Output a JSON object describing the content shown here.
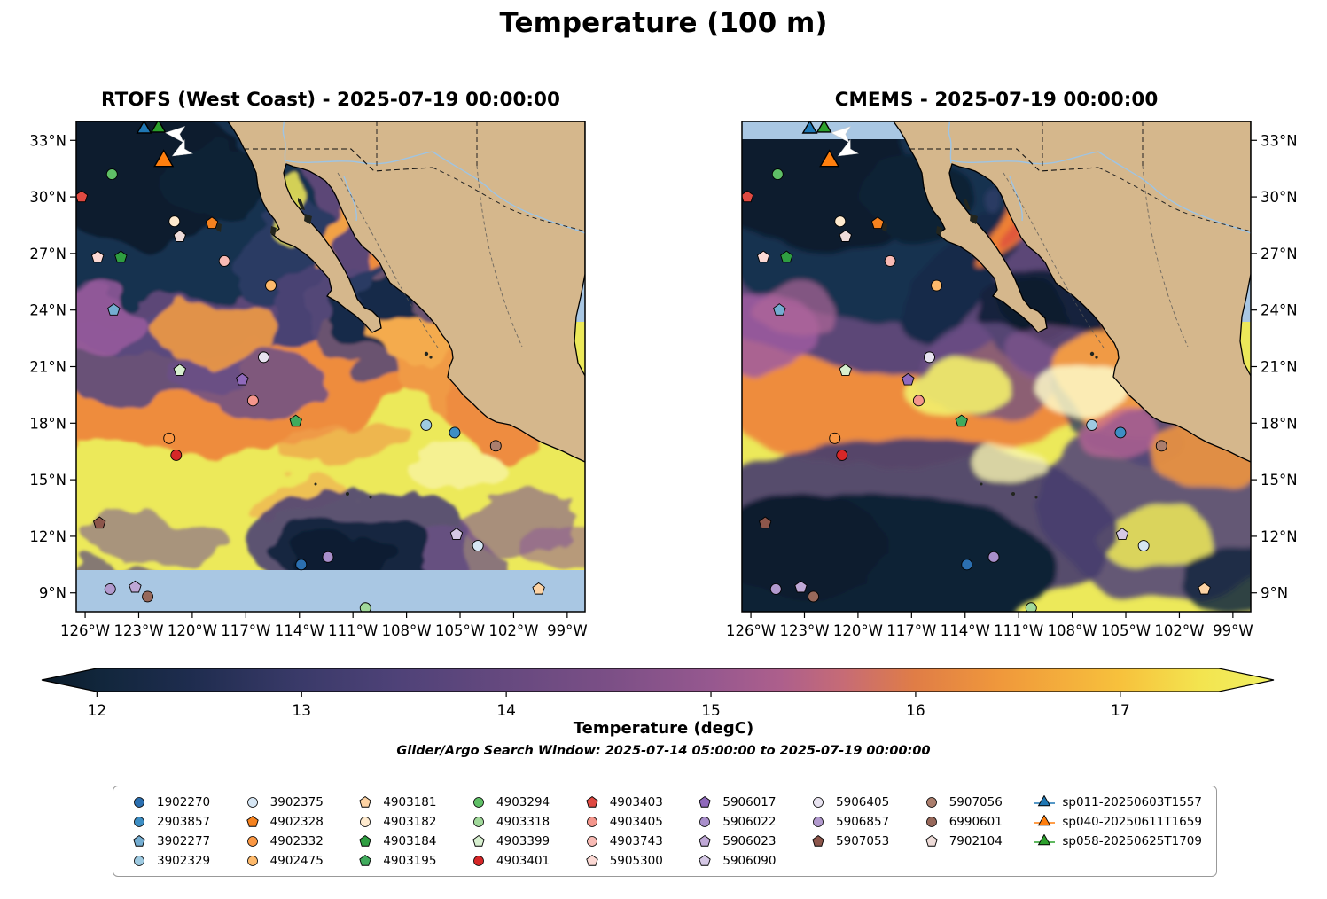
{
  "title": "Temperature (100 m)",
  "subplots": [
    {
      "title": "RTOFS (West Coast) - 2025-07-19 00:00:00"
    },
    {
      "title": "CMEMS - 2025-07-19 00:00:00"
    }
  ],
  "colorbar": {
    "label": "Temperature (degC)",
    "ticks": [
      12,
      13,
      14,
      15,
      16,
      17
    ],
    "vmin": 11.73,
    "vmax": 17.75,
    "stops": [
      [
        0,
        "#0a1a28"
      ],
      [
        4.5,
        "#11263b"
      ],
      [
        12,
        "#1e2c4e"
      ],
      [
        21,
        "#3a3a69"
      ],
      [
        29,
        "#4f4278"
      ],
      [
        37.7,
        "#66497f"
      ],
      [
        46,
        "#7b4f86"
      ],
      [
        54.3,
        "#96588f"
      ],
      [
        60,
        "#ad5f8c"
      ],
      [
        65,
        "#c66b76"
      ],
      [
        70.9,
        "#e07d46"
      ],
      [
        78,
        "#f0993b"
      ],
      [
        87.5,
        "#f7c13c"
      ],
      [
        94,
        "#f3e44f"
      ],
      [
        100,
        "#f0f063"
      ]
    ]
  },
  "search_window": "Glider/Argo Search Window: 2025-07-14 05:00:00 to 2025-07-19 00:00:00",
  "legend": {
    "columns": [
      [
        "1902270",
        "2903857",
        "3902277",
        "3902329"
      ],
      [
        "3902375",
        "4902328",
        "4902332",
        "4902475"
      ],
      [
        "4903181",
        "4903182",
        "4903184",
        "4903195"
      ],
      [
        "4903294",
        "4903318",
        "4903399",
        "4903401"
      ],
      [
        "4903403",
        "4903405",
        "4903743",
        "5905300"
      ],
      [
        "5906017",
        "5906022",
        "5906023",
        "5906090"
      ],
      [
        "5906405",
        "5906857",
        "5907053"
      ],
      [
        "5907056",
        "6990601",
        "7902104"
      ],
      [
        "sp011-20250603T1557",
        "sp040-20250611T1659",
        "sp058-20250625T1709"
      ]
    ]
  },
  "chart_data": {
    "type": "heatmap",
    "variable": "Temperature (100 m)",
    "units": "degC",
    "valid_time": "2025-07-19 00:00:00",
    "panels": [
      "RTOFS (West Coast)",
      "CMEMS"
    ],
    "extent": {
      "lon_min": -126.5,
      "lon_max": -98.0,
      "lat_min": 8.0,
      "lat_max": 34.0
    },
    "lat_ticks": [
      {
        "value": 33,
        "label": "33°N"
      },
      {
        "value": 30,
        "label": "30°N"
      },
      {
        "value": 27,
        "label": "27°N"
      },
      {
        "value": 24,
        "label": "24°N"
      },
      {
        "value": 21,
        "label": "21°N"
      },
      {
        "value": 18,
        "label": "18°N"
      },
      {
        "value": 15,
        "label": "15°N"
      },
      {
        "value": 12,
        "label": "12°N"
      },
      {
        "value": 9,
        "label": "9°N"
      }
    ],
    "lon_ticks": [
      {
        "value": -126,
        "label": "126°W"
      },
      {
        "value": -123,
        "label": "123°W"
      },
      {
        "value": -120,
        "label": "120°W"
      },
      {
        "value": -117,
        "label": "117°W"
      },
      {
        "value": -114,
        "label": "114°W"
      },
      {
        "value": -111,
        "label": "111°W"
      },
      {
        "value": -108,
        "label": "108°W"
      },
      {
        "value": -105,
        "label": "105°W"
      },
      {
        "value": -102,
        "label": "102°W"
      },
      {
        "value": -99,
        "label": "99°W"
      }
    ],
    "floats": [
      {
        "id": "1902270",
        "shape": "circle",
        "color": "#2b6fb0",
        "lon": -113.9,
        "lat": 10.5
      },
      {
        "id": "2903857",
        "shape": "circle",
        "color": "#3d8ec4",
        "lon": -105.3,
        "lat": 17.5
      },
      {
        "id": "3902277",
        "shape": "pentagon",
        "color": "#74add1",
        "lon": -124.4,
        "lat": 24.0
      },
      {
        "id": "3902329",
        "shape": "circle",
        "color": "#9ecae1",
        "lon": -106.9,
        "lat": 17.9
      },
      {
        "id": "3902375",
        "shape": "circle",
        "color": "#d6e6f4",
        "lon": -104.0,
        "lat": 11.5
      },
      {
        "id": "4902328",
        "shape": "pentagon",
        "color": "#f5821f",
        "lon": -118.9,
        "lat": 28.6
      },
      {
        "id": "4902332",
        "shape": "circle",
        "color": "#fa9743",
        "lon": -121.3,
        "lat": 17.2
      },
      {
        "id": "4902475",
        "shape": "circle",
        "color": "#fdb96b",
        "lon": -115.6,
        "lat": 25.3
      },
      {
        "id": "4903181",
        "shape": "pentagon",
        "color": "#fdd3a4",
        "lon": -100.6,
        "lat": 9.2
      },
      {
        "id": "4903182",
        "shape": "circle",
        "color": "#feeace",
        "lon": -121.0,
        "lat": 28.7
      },
      {
        "id": "4903184",
        "shape": "pentagon",
        "color": "#2f9e41",
        "lon": -124.0,
        "lat": 26.8
      },
      {
        "id": "4903195",
        "shape": "pentagon",
        "color": "#41ab5d",
        "lon": -114.2,
        "lat": 18.1
      },
      {
        "id": "4903294",
        "shape": "circle",
        "color": "#5fbf66",
        "lon": -124.5,
        "lat": 31.2
      },
      {
        "id": "4903318",
        "shape": "circle",
        "color": "#a1d99b",
        "lon": -110.3,
        "lat": 8.2
      },
      {
        "id": "4903399",
        "shape": "pentagon",
        "color": "#d7efcf",
        "lon": -120.7,
        "lat": 20.8
      },
      {
        "id": "4903401",
        "shape": "circle",
        "color": "#d62728",
        "lon": -120.9,
        "lat": 16.3
      },
      {
        "id": "4903403",
        "shape": "pentagon",
        "color": "#df4a42",
        "lon": -126.2,
        "lat": 30.0
      },
      {
        "id": "4903405",
        "shape": "circle",
        "color": "#f4968c",
        "lon": -116.6,
        "lat": 19.2
      },
      {
        "id": "4903743",
        "shape": "circle",
        "color": "#f8bab4",
        "lon": -118.2,
        "lat": 26.6
      },
      {
        "id": "5905300",
        "shape": "pentagon",
        "color": "#fcd9d4",
        "lon": -125.3,
        "lat": 26.8
      },
      {
        "id": "5906017",
        "shape": "pentagon",
        "color": "#8f69bb",
        "lon": -117.2,
        "lat": 20.3
      },
      {
        "id": "5906022",
        "shape": "circle",
        "color": "#a98fcb",
        "lon": -112.4,
        "lat": 10.9
      },
      {
        "id": "5906023",
        "shape": "pentagon",
        "color": "#bfa8d6",
        "lon": -123.2,
        "lat": 9.3
      },
      {
        "id": "5906090",
        "shape": "pentagon",
        "color": "#d5c8e5",
        "lon": -105.2,
        "lat": 12.1
      },
      {
        "id": "5906405",
        "shape": "circle",
        "color": "#e8e3f0",
        "lon": -116.0,
        "lat": 21.5
      },
      {
        "id": "5906857",
        "shape": "circle",
        "color": "#b29ace",
        "lon": -124.6,
        "lat": 9.2
      },
      {
        "id": "5907053",
        "shape": "pentagon",
        "color": "#8c564b",
        "lon": -125.2,
        "lat": 12.7
      },
      {
        "id": "5907056",
        "shape": "circle",
        "color": "#ab7e6d",
        "lon": -103.0,
        "lat": 16.8
      },
      {
        "id": "6990601",
        "shape": "circle",
        "color": "#97685a",
        "lon": -122.5,
        "lat": 8.8
      },
      {
        "id": "7902104",
        "shape": "pentagon",
        "color": "#eedcd9",
        "lon": -120.7,
        "lat": 27.9
      },
      {
        "id": "sp011-20250603T1557",
        "shape": "triangle",
        "color": "#1f77b4",
        "lon": -122.7,
        "lat": 33.6,
        "size": 8
      },
      {
        "id": "sp040-20250611T1659",
        "shape": "triangle",
        "color": "#ff7f0e",
        "lon": -121.6,
        "lat": 31.9,
        "size": 11
      },
      {
        "id": "sp058-20250625T1709",
        "shape": "triangle",
        "color": "#2ca02c",
        "lon": -121.9,
        "lat": 33.65,
        "size": 8
      }
    ],
    "arrows": [
      {
        "lon": -120.9,
        "lat": 33.35,
        "rot": 185
      },
      {
        "lon": -120.6,
        "lat": 32.45,
        "rot": 150
      }
    ]
  }
}
